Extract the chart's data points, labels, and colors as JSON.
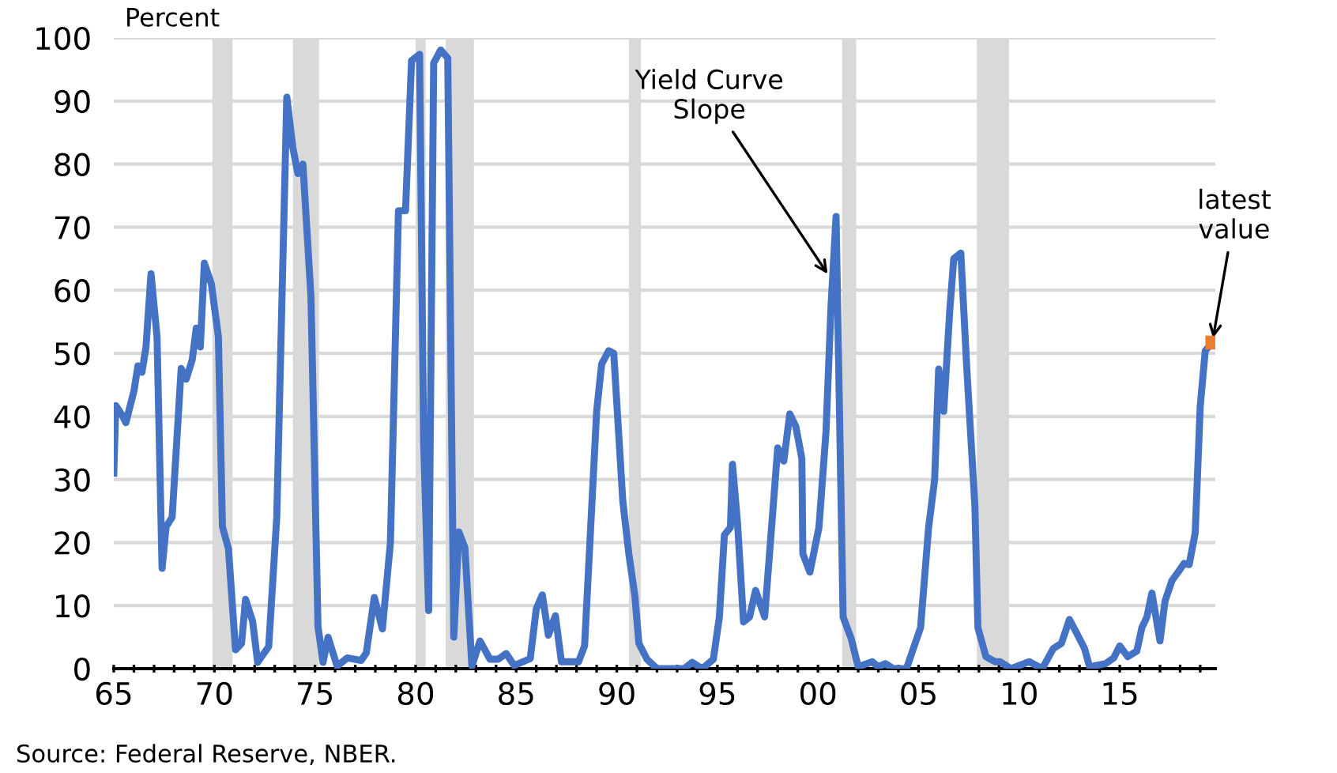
{
  "chart_data": {
    "type": "line",
    "ylabel": "Percent",
    "xlim": [
      1965,
      2019.75
    ],
    "ylim": [
      0,
      100
    ],
    "yticks": [
      0,
      10,
      20,
      30,
      40,
      50,
      60,
      70,
      80,
      90,
      100
    ],
    "xticks": [
      {
        "value": 1965,
        "label": "65"
      },
      {
        "value": 1966,
        "label": null
      },
      {
        "value": 1967,
        "label": null
      },
      {
        "value": 1968,
        "label": null
      },
      {
        "value": 1969,
        "label": null
      },
      {
        "value": 1970,
        "label": "70"
      },
      {
        "value": 1971,
        "label": null
      },
      {
        "value": 1972,
        "label": null
      },
      {
        "value": 1973,
        "label": null
      },
      {
        "value": 1974,
        "label": null
      },
      {
        "value": 1975,
        "label": "75"
      },
      {
        "value": 1976,
        "label": null
      },
      {
        "value": 1977,
        "label": null
      },
      {
        "value": 1978,
        "label": null
      },
      {
        "value": 1979,
        "label": null
      },
      {
        "value": 1980,
        "label": "80"
      },
      {
        "value": 1981,
        "label": null
      },
      {
        "value": 1982,
        "label": null
      },
      {
        "value": 1983,
        "label": null
      },
      {
        "value": 1984,
        "label": null
      },
      {
        "value": 1985,
        "label": "85"
      },
      {
        "value": 1986,
        "label": null
      },
      {
        "value": 1987,
        "label": null
      },
      {
        "value": 1988,
        "label": null
      },
      {
        "value": 1989,
        "label": null
      },
      {
        "value": 1990,
        "label": "90"
      },
      {
        "value": 1991,
        "label": null
      },
      {
        "value": 1992,
        "label": null
      },
      {
        "value": 1993,
        "label": null
      },
      {
        "value": 1994,
        "label": null
      },
      {
        "value": 1995,
        "label": "95"
      },
      {
        "value": 1996,
        "label": null
      },
      {
        "value": 1997,
        "label": null
      },
      {
        "value": 1998,
        "label": null
      },
      {
        "value": 1999,
        "label": null
      },
      {
        "value": 2000,
        "label": "00"
      },
      {
        "value": 2001,
        "label": null
      },
      {
        "value": 2002,
        "label": null
      },
      {
        "value": 2003,
        "label": null
      },
      {
        "value": 2004,
        "label": null
      },
      {
        "value": 2005,
        "label": "05"
      },
      {
        "value": 2006,
        "label": null
      },
      {
        "value": 2007,
        "label": null
      },
      {
        "value": 2008,
        "label": null
      },
      {
        "value": 2009,
        "label": null
      },
      {
        "value": 2010,
        "label": "10"
      },
      {
        "value": 2011,
        "label": null
      },
      {
        "value": 2012,
        "label": null
      },
      {
        "value": 2013,
        "label": null
      },
      {
        "value": 2014,
        "label": null
      },
      {
        "value": 2015,
        "label": "15"
      },
      {
        "value": 2016,
        "label": null
      },
      {
        "value": 2017,
        "label": null
      },
      {
        "value": 2018,
        "label": null
      },
      {
        "value": 2019,
        "label": null
      }
    ],
    "grid": "y",
    "legend": false,
    "bands": [
      {
        "axis": "x",
        "from": 1969.9,
        "to": 1970.9,
        "color": "#d9d9d9"
      },
      {
        "axis": "x",
        "from": 1973.9,
        "to": 1975.2,
        "color": "#d9d9d9"
      },
      {
        "axis": "x",
        "from": 1980.0,
        "to": 1980.5,
        "color": "#d9d9d9"
      },
      {
        "axis": "x",
        "from": 1981.5,
        "to": 1982.9,
        "color": "#d9d9d9"
      },
      {
        "axis": "x",
        "from": 1990.6,
        "to": 1991.2,
        "color": "#d9d9d9"
      },
      {
        "axis": "x",
        "from": 2001.2,
        "to": 2001.9,
        "color": "#d9d9d9"
      },
      {
        "axis": "x",
        "from": 2007.9,
        "to": 2009.5,
        "color": "#d9d9d9"
      }
    ],
    "series": [
      {
        "color": "#4472c4",
        "marker": "none",
        "x": [
          1965.0,
          1965.1,
          1965.45,
          1965.6,
          1966.0,
          1966.2,
          1966.4,
          1966.6,
          1966.85,
          1967.15,
          1967.4,
          1967.6,
          1967.9,
          1968.35,
          1968.6,
          1968.9,
          1969.1,
          1969.3,
          1969.5,
          1969.85,
          1970.2,
          1970.4,
          1970.7,
          1971.05,
          1971.35,
          1971.55,
          1971.9,
          1972.15,
          1972.7,
          1973.1,
          1973.6,
          1973.9,
          1974.15,
          1974.4,
          1974.8,
          1975.15,
          1975.4,
          1975.65,
          1976.1,
          1976.6,
          1977.3,
          1977.55,
          1977.95,
          1978.35,
          1978.75,
          1979.15,
          1979.5,
          1979.8,
          1980.2,
          1980.4,
          1980.65,
          1980.9,
          1981.25,
          1981.6,
          1981.9,
          1982.15,
          1982.45,
          1982.8,
          1983.2,
          1983.7,
          1984.1,
          1984.5,
          1984.9,
          1985.7,
          1986.0,
          1986.3,
          1986.6,
          1986.95,
          1987.25,
          1988.1,
          1988.4,
          1989.0,
          1989.25,
          1989.6,
          1989.85,
          1990.3,
          1990.6,
          1990.9,
          1991.1,
          1991.5,
          1992.0,
          1993.35,
          1993.75,
          1994.25,
          1994.8,
          1995.1,
          1995.35,
          1995.65,
          1995.75,
          1996.0,
          1996.3,
          1996.6,
          1996.9,
          1997.35,
          1998.0,
          1998.3,
          1998.6,
          1998.9,
          1999.2,
          1999.25,
          1999.6,
          2000.05,
          2000.4,
          2000.65,
          2000.9,
          2001.25,
          2001.65,
          2002.0,
          2002.7,
          2003.0,
          2003.35,
          2003.75,
          2004.4,
          2004.7,
          2005.1,
          2005.5,
          2005.8,
          2006.0,
          2006.25,
          2006.55,
          2006.75,
          2007.1,
          2007.4,
          2007.8,
          2007.95,
          2008.35,
          2008.8,
          2009.05,
          2009.6,
          2010.5,
          2011.15,
          2011.7,
          2012.1,
          2012.5,
          2012.85,
          2013.25,
          2013.5,
          2014.3,
          2014.7,
          2015.0,
          2015.4,
          2015.85,
          2016.1,
          2016.35,
          2016.6,
          2017.0,
          2017.25,
          2017.6,
          2017.9,
          2018.2,
          2018.45,
          2018.75,
          2019.0,
          2019.25,
          2019.6
        ],
        "values": [
          31,
          41.7,
          40,
          39,
          44,
          48,
          47,
          51,
          62.6,
          52.6,
          15.9,
          22.5,
          24,
          47.6,
          45.9,
          49,
          54,
          51,
          64.3,
          61,
          52.6,
          22.5,
          19,
          3,
          4,
          11,
          7.5,
          1,
          3.5,
          24,
          90.6,
          82.6,
          78.5,
          80,
          59,
          6.7,
          1,
          5,
          0.4,
          1.7,
          1.3,
          2.5,
          11.3,
          6.3,
          20,
          72.6,
          72.6,
          96.4,
          97.4,
          36,
          9.2,
          96,
          98.1,
          96.8,
          5,
          21.7,
          19.2,
          0.4,
          4.4,
          1.5,
          1.5,
          2.4,
          0.5,
          1.6,
          9.5,
          11.7,
          5.3,
          8.4,
          1.1,
          1.1,
          3.6,
          40.8,
          48.3,
          50.4,
          50,
          26.6,
          18.2,
          11.5,
          4,
          1.5,
          0,
          0,
          1,
          0,
          1.5,
          8.2,
          21.2,
          22.4,
          32.4,
          23.2,
          7.4,
          8.2,
          12.4,
          8.2,
          35,
          32.9,
          40.4,
          38.4,
          33.3,
          18.2,
          15.3,
          22.4,
          37.6,
          57.5,
          71.7,
          8.2,
          4.8,
          0.3,
          1.1,
          0.3,
          0.8,
          0,
          0,
          2.8,
          6.5,
          22.4,
          30,
          47.5,
          40.8,
          56.7,
          65,
          65.9,
          47.5,
          25.8,
          6.5,
          1.9,
          1.1,
          1.1,
          0,
          1.1,
          0,
          3.2,
          4,
          7.8,
          5.7,
          3.2,
          0.3,
          0.8,
          1.7,
          3.6,
          1.9,
          2.8,
          6.5,
          8.2,
          12,
          4.4,
          10.7,
          14,
          15.3,
          16.7,
          16.5,
          21.5,
          41.6,
          50.4,
          51.7
        ]
      },
      {
        "type": "scatter",
        "color": "#ed7d31",
        "marker": "square",
        "x": [
          2019.6
        ],
        "values": [
          51.7
        ]
      }
    ],
    "annotations": [
      {
        "text": "Yield Curve\nSlope",
        "x": 2000.6,
        "y": 62
      },
      {
        "text": "latest\nvalue",
        "x": 2019.6,
        "y": 51.7
      },
      "Source: Federal Reserve, NBER."
    ]
  }
}
